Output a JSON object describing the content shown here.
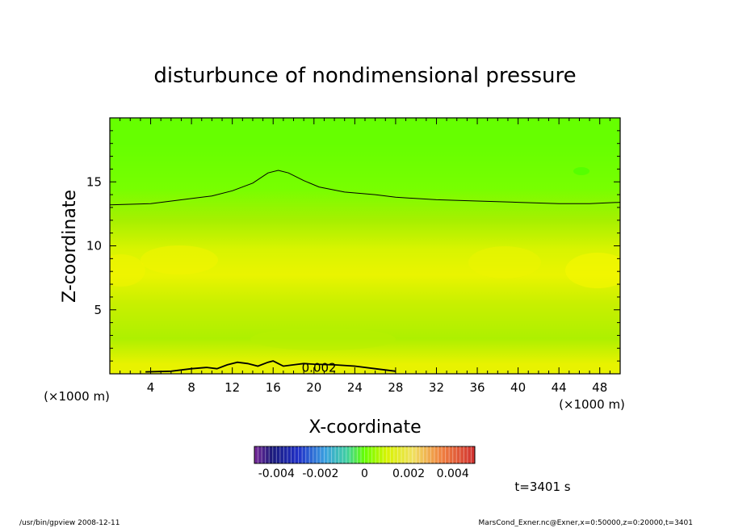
{
  "chart_data": {
    "type": "heatmap",
    "title": "disturbunce of nondimensional pressure",
    "xlabel": "X-coordinate",
    "ylabel": "Z-coordinate",
    "x_unit": "(×1000 m)",
    "y_unit": "(×1000 m)",
    "xlim": [
      0,
      50
    ],
    "ylim": [
      0,
      20
    ],
    "x_ticks": [
      4,
      8,
      12,
      16,
      20,
      24,
      28,
      32,
      36,
      40,
      44,
      48
    ],
    "y_ticks": [
      5,
      10,
      15
    ],
    "contours": [
      {
        "level_label": "",
        "points": [
          [
            0,
            13.2
          ],
          [
            4,
            13.3
          ],
          [
            8,
            13.7
          ],
          [
            10,
            13.9
          ],
          [
            12,
            14.3
          ],
          [
            14,
            14.9
          ],
          [
            15.5,
            15.7
          ],
          [
            16.5,
            15.9
          ],
          [
            17.5,
            15.7
          ],
          [
            19,
            15.1
          ],
          [
            20.5,
            14.6
          ],
          [
            23,
            14.2
          ],
          [
            26,
            14.0
          ],
          [
            28,
            13.8
          ],
          [
            32,
            13.6
          ],
          [
            36,
            13.5
          ],
          [
            40,
            13.4
          ],
          [
            44,
            13.3
          ],
          [
            47,
            13.3
          ],
          [
            50,
            13.4
          ]
        ]
      },
      {
        "level_label": "0.002",
        "points": [
          [
            3.5,
            0.15
          ],
          [
            6,
            0.2
          ],
          [
            8,
            0.4
          ],
          [
            9.5,
            0.5
          ],
          [
            10.5,
            0.4
          ],
          [
            11.5,
            0.7
          ],
          [
            12.5,
            0.9
          ],
          [
            13.5,
            0.8
          ],
          [
            14.5,
            0.6
          ],
          [
            15.5,
            0.9
          ],
          [
            16,
            1.0
          ],
          [
            16.5,
            0.8
          ],
          [
            17,
            0.6
          ],
          [
            18,
            0.7
          ],
          [
            19,
            0.8
          ],
          [
            20,
            0.75
          ],
          [
            22,
            0.7
          ],
          [
            24,
            0.6
          ],
          [
            26,
            0.4
          ],
          [
            28,
            0.2
          ]
        ]
      }
    ],
    "field_bands": [
      {
        "z_from": 20,
        "z_to": 16,
        "color": "#66ff00"
      },
      {
        "z_from": 16,
        "z_to": 13,
        "color": "#77ff00"
      },
      {
        "z_from": 13,
        "z_to": 11,
        "color": "#a6f000"
      },
      {
        "z_from": 11,
        "z_to": 8.5,
        "color": "#d8f400"
      },
      {
        "z_from": 8.5,
        "z_to": 7,
        "color": "#eaf400"
      },
      {
        "z_from": 7,
        "z_to": 4,
        "color": "#c8f000"
      },
      {
        "z_from": 4,
        "z_to": 1.5,
        "color": "#aef000"
      },
      {
        "z_from": 1.5,
        "z_to": 0,
        "color": "#e8f200"
      }
    ],
    "colorbar": {
      "min": -0.005,
      "max": 0.005,
      "tick_labels": [
        "-0.004",
        "-0.002",
        "0",
        "0.002",
        "0.004"
      ],
      "tick_values": [
        -0.004,
        -0.002,
        0,
        0.002,
        0.004
      ]
    }
  },
  "time_label": "t=3401 s",
  "footer": {
    "left": "/usr/bin/gpview   2008-12-11",
    "right": "MarsCond_Exner.nc@Exner,x=0:50000,z=0:20000,t=3401"
  }
}
